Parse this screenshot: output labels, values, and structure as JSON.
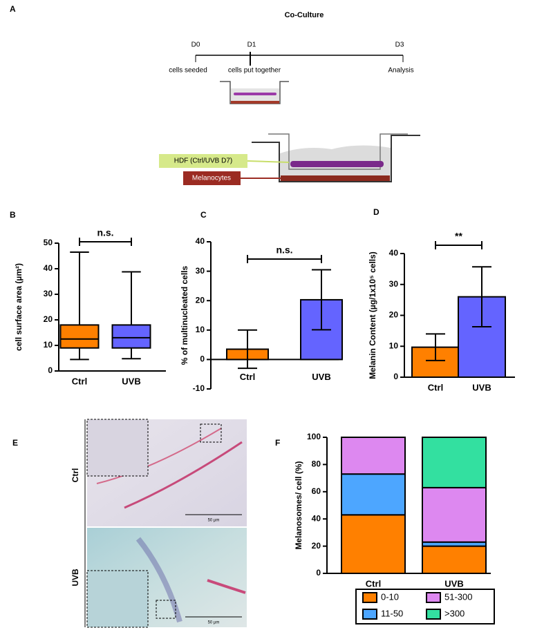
{
  "panel_labels": [
    "A",
    "B",
    "C",
    "D",
    "E",
    "F"
  ],
  "panel_a": {
    "title": "Co-Culture",
    "days": [
      "D0",
      "D1",
      "D3"
    ],
    "steps": [
      "cells seeded",
      "cells put together",
      "Analysis"
    ],
    "layers": [
      "HDF (Ctrl/UVB D7)",
      "Melanocytes"
    ]
  },
  "panel_e": {
    "rows": [
      "Ctrl",
      "UVB"
    ],
    "scale_bar": "50 µm"
  },
  "chart_data": [
    {
      "type": "box",
      "ylabel": "cell surface area (µm²)",
      "categories": [
        "Ctrl",
        "UVB"
      ],
      "min": [
        4.5,
        4.8
      ],
      "q1": [
        9,
        9
      ],
      "median": [
        12.5,
        13
      ],
      "q3": [
        18,
        18
      ],
      "max": [
        46.5,
        38.8
      ],
      "colors": [
        "#ff8000",
        "#6464ff"
      ],
      "ylim": [
        0,
        50
      ],
      "yticks": [
        0,
        10,
        20,
        30,
        40,
        50
      ],
      "annotation": "n.s."
    },
    {
      "type": "bar",
      "ylabel": "% of multinucleated cells",
      "categories": [
        "Ctrl",
        "UVB"
      ],
      "values": [
        3.5,
        20.3
      ],
      "errors": [
        6.5,
        10.2
      ],
      "colors": [
        "#ff8000",
        "#6464ff"
      ],
      "ylim": [
        -10,
        40
      ],
      "yticks": [
        -10,
        0,
        10,
        20,
        30,
        40
      ],
      "annotation": "n.s."
    },
    {
      "type": "bar",
      "ylabel": "Melanin Content (µg/1x10⁵ cells)",
      "categories": [
        "Ctrl",
        "UVB"
      ],
      "values": [
        9.7,
        26
      ],
      "errors": [
        4.3,
        9.7
      ],
      "colors": [
        "#ff8000",
        "#6464ff"
      ],
      "ylim": [
        0,
        40
      ],
      "yticks": [
        0,
        10,
        20,
        30,
        40
      ],
      "annotation": "**"
    },
    {
      "type": "stacked_bar",
      "ylabel": "Melanosomes/ cell (%)",
      "categories": [
        "Ctrl",
        "UVB"
      ],
      "series": [
        {
          "name": "0-10",
          "color": "#ff8000",
          "values": [
            43,
            20
          ]
        },
        {
          "name": "11-50",
          "color": "#4da6ff",
          "values": [
            30,
            3
          ]
        },
        {
          "name": "51-300",
          "color": "#dd88f0",
          "values": [
            27,
            40
          ]
        },
        {
          "name": ">300",
          "color": "#33e0a0",
          "values": [
            0,
            37
          ]
        }
      ],
      "ylim": [
        0,
        100
      ],
      "yticks": [
        0,
        20,
        40,
        60,
        80,
        100
      ]
    }
  ]
}
